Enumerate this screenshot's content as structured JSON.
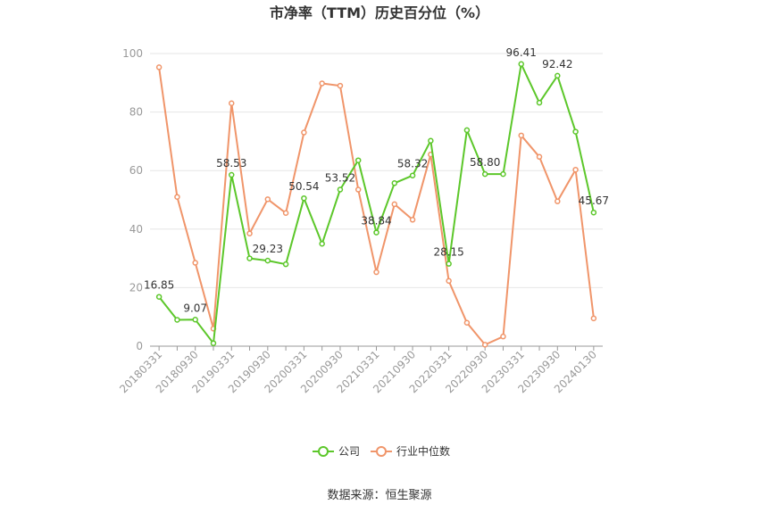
{
  "chart_data": {
    "type": "line",
    "title": "市净率（TTM）历史百分位（%）",
    "source": "数据来源：恒生聚源",
    "ylim": [
      0,
      100
    ],
    "yticks": [
      0,
      20,
      40,
      60,
      80,
      100
    ],
    "x": [
      "20180331",
      "20180630",
      "20180930",
      "20181231",
      "20190331",
      "20190630",
      "20190930",
      "20191231",
      "20200331",
      "20200630",
      "20200930",
      "20201231",
      "20210331",
      "20210630",
      "20210930",
      "20211231",
      "20220331",
      "20220630",
      "20220930",
      "20221231",
      "20230331",
      "20230630",
      "20230930",
      "20231231",
      "20240130"
    ],
    "xtick_labels": [
      "20180331",
      "20180930",
      "20190331",
      "20190930",
      "20200331",
      "20200930",
      "20210331",
      "20210930",
      "20220331",
      "20220930",
      "20230331",
      "20230930",
      "20240130"
    ],
    "series": [
      {
        "name": "公司",
        "color": "#5cc72a",
        "values": [
          16.85,
          9.0,
          9.07,
          1.0,
          58.53,
          30.0,
          29.23,
          28.0,
          50.54,
          35.0,
          53.52,
          63.5,
          38.84,
          55.7,
          58.32,
          70.2,
          28.15,
          73.8,
          58.8,
          58.8,
          96.41,
          83.2,
          92.42,
          73.3,
          45.67
        ],
        "labels": [
          "16.85",
          "",
          "9.07",
          "",
          "58.53",
          "",
          "29.23",
          "",
          "50.54",
          "",
          "53.52",
          "",
          "38.84",
          "",
          "58.32",
          "",
          "28.15",
          "",
          "58.80",
          "",
          "96.41",
          "",
          "92.42",
          "",
          "45.67"
        ]
      },
      {
        "name": "行业中位数",
        "color": "#f0956a",
        "values": [
          95.3,
          51.0,
          28.5,
          6.0,
          83.0,
          38.5,
          50.2,
          45.5,
          73.0,
          89.8,
          89.0,
          53.5,
          25.3,
          48.5,
          43.2,
          65.5,
          22.3,
          8.0,
          0.5,
          3.3,
          72.0,
          64.7,
          49.5,
          60.3,
          9.5
        ]
      }
    ],
    "legend": {
      "placement": "bottom-center"
    }
  }
}
